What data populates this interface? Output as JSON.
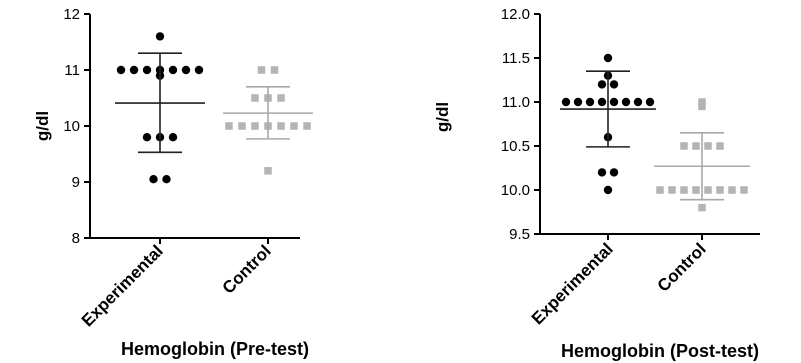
{
  "chart_data": [
    {
      "type": "scatter",
      "title": "Hemoglobin (Pre-test)",
      "xlabel": "",
      "ylabel": "g/dl",
      "ylim": [
        8,
        12
      ],
      "yticks": [
        "8",
        "9",
        "10",
        "11",
        "12"
      ],
      "categories": [
        "Experimental",
        "Control"
      ],
      "grid": false,
      "colors": {
        "Experimental": "#000000",
        "Control": "#b4b4b4"
      },
      "markers": {
        "Experimental": "circle",
        "Control": "square"
      },
      "series": [
        {
          "values": [
            11.6,
            11.0,
            11.0,
            11.0,
            11.0,
            11.0,
            11.0,
            11.0,
            10.9,
            9.8,
            9.8,
            9.8,
            9.05,
            9.05
          ],
          "mean": 10.41,
          "sd_upper": 11.3,
          "sd_lower": 9.53
        },
        {
          "values": [
            11.0,
            11.0,
            10.5,
            10.5,
            10.5,
            10.0,
            10.0,
            10.0,
            10.0,
            10.0,
            10.0,
            10.0,
            9.2
          ],
          "mean": 10.23,
          "sd_upper": 10.7,
          "sd_lower": 9.77
        }
      ]
    },
    {
      "type": "scatter",
      "title": "Hemoglobin (Post-test)",
      "xlabel": "",
      "ylabel": "g/dl",
      "ylim": [
        9.5,
        12.0
      ],
      "yticks": [
        "9.5",
        "10.0",
        "10.5",
        "11.0",
        "11.5",
        "12.0"
      ],
      "categories": [
        "Experimental",
        "Control"
      ],
      "grid": false,
      "colors": {
        "Experimental": "#000000",
        "Control": "#b4b4b4"
      },
      "markers": {
        "Experimental": "circle",
        "Control": "square"
      },
      "series": [
        {
          "values": [
            11.5,
            11.3,
            11.2,
            11.2,
            11.0,
            11.0,
            11.0,
            11.0,
            11.0,
            11.0,
            11.0,
            11.0,
            10.6,
            10.2,
            10.2,
            10.0
          ],
          "mean": 10.92,
          "sd_upper": 11.35,
          "sd_lower": 10.49
        },
        {
          "values": [
            11.0,
            10.95,
            10.5,
            10.5,
            10.5,
            10.5,
            10.0,
            10.0,
            10.0,
            10.0,
            10.0,
            10.0,
            10.0,
            10.0,
            9.8
          ],
          "mean": 10.27,
          "sd_upper": 10.65,
          "sd_lower": 9.89
        }
      ]
    }
  ]
}
